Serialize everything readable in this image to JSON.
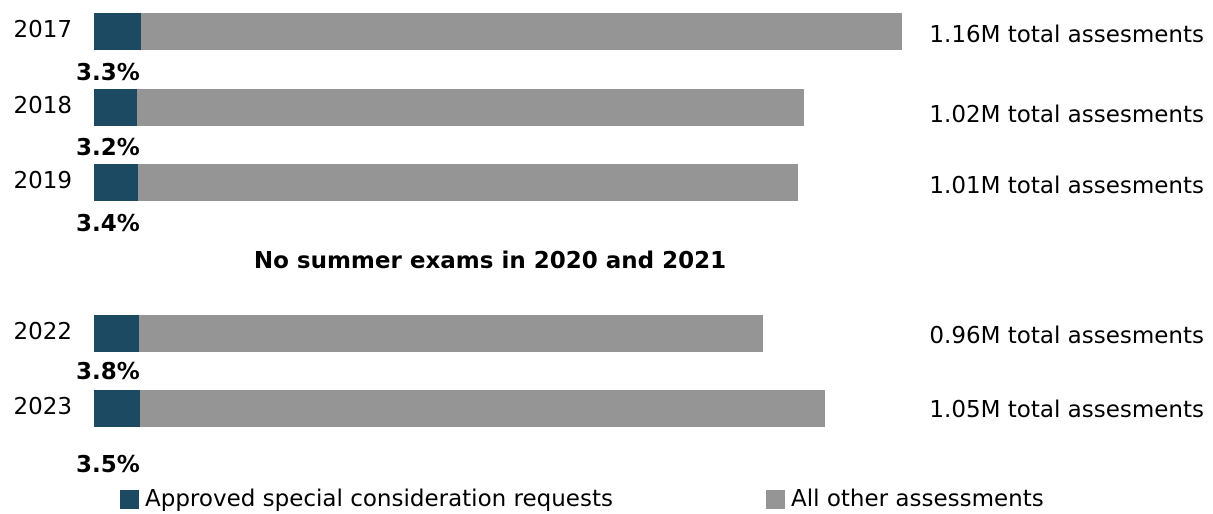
{
  "colors": {
    "approved": "#1d4a63",
    "other": "#959595"
  },
  "chart_data": {
    "type": "bar",
    "orientation": "horizontal",
    "stacked": true,
    "categories": [
      "2017",
      "2018",
      "2019",
      "2022",
      "2023"
    ],
    "totals_millions": [
      1.16,
      1.02,
      1.01,
      0.96,
      1.05
    ],
    "total_labels": [
      "1.16M total assesments",
      "1.02M total assesments",
      "1.01M total assesments",
      "0.96M total assesments",
      "1.05M total assesments"
    ],
    "approved_share_percent": [
      3.3,
      3.2,
      3.4,
      3.8,
      3.5
    ],
    "approved_share_labels": [
      "3.3%",
      "3.2%",
      "3.4%",
      "3.8%",
      "3.5%"
    ],
    "series": [
      {
        "name": "Approved special consideration requests",
        "color": "#1d4a63"
      },
      {
        "name": "All other assessments",
        "color": "#959595"
      }
    ],
    "gap_note": "No summer exams in 2020 and 2021",
    "grid": false,
    "legend_position": "bottom"
  }
}
